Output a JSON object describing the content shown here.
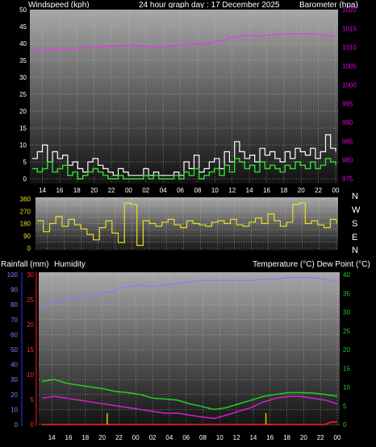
{
  "header": {
    "windspeed_label": "Windspeed (kph)",
    "title": "24 hour graph day : 17 December 2025",
    "barometer_label": "Barometer (hpa)"
  },
  "footer_labels": {
    "rainfall_label": "Rainfall (mm)",
    "humidity_label": "Humidity",
    "temp_dew_label": "Temperature (°C) Dew Point (°C)"
  },
  "time_ticks": [
    "14",
    "16",
    "18",
    "20",
    "22",
    "00",
    "02",
    "04",
    "06",
    "08",
    "10",
    "12",
    "14",
    "16",
    "18",
    "20",
    "22",
    "00"
  ],
  "wind_dirs": [
    "N",
    "W",
    "S",
    "E",
    "N"
  ],
  "colors": {
    "barometer": "#e040e0",
    "wind_avg": "#33dd33",
    "wind_gust": "#ffffff",
    "wind_dir": "#e8e020",
    "humidity": "#8080ff",
    "temperature": "#20d020",
    "dewpoint": "#d020d0",
    "rainfall": "#ff2020",
    "rain_marker": "#e8c000"
  },
  "chart_data": [
    {
      "type": "line",
      "title": "24 hour graph day : 17 December 2025",
      "x_labels": [
        "14",
        "16",
        "18",
        "20",
        "22",
        "00",
        "02",
        "04",
        "06",
        "08",
        "10",
        "12",
        "14",
        "16",
        "18",
        "20",
        "22",
        "00"
      ],
      "ylabel_left": "Windspeed (kph)",
      "ylim_left": [
        0,
        50
      ],
      "yticks_left": [
        "0",
        "5",
        "10",
        "15",
        "20",
        "25",
        "30",
        "35",
        "40",
        "45",
        "50"
      ],
      "ylabel_right": "Barometer (hpa)",
      "ylim_right": [
        975,
        1020
      ],
      "yticks_right": [
        "975",
        "980",
        "985",
        "990",
        "995",
        "1000",
        "1005",
        "1010",
        "1015",
        "1020"
      ],
      "series": [
        {
          "name": "Barometer (hpa)",
          "axis": "right",
          "x": [
            0,
            2,
            4,
            6,
            8,
            10,
            11,
            12,
            14,
            16,
            17,
            18,
            19,
            20,
            22,
            24
          ],
          "values": [
            1009.3,
            1009.4,
            1009.8,
            1010.3,
            1010.5,
            1010.0,
            1010.4,
            1010.8,
            1011.0,
            1012.7,
            1013.2,
            1013.0,
            1013.3,
            1013.6,
            1013.6,
            1012.9
          ]
        },
        {
          "name": "Wind average",
          "axis": "left",
          "x": [
            0,
            0.4,
            0.8,
            1.2,
            1.6,
            2,
            2.4,
            2.8,
            3.2,
            3.6,
            4,
            4.4,
            4.8,
            5.2,
            5.6,
            6,
            6.4,
            6.8,
            7.2,
            7.6,
            8,
            8.4,
            8.8,
            9.2,
            9.6,
            10,
            10.4,
            10.8,
            11.2,
            11.6,
            12,
            12.4,
            12.8,
            13.2,
            13.6,
            14,
            14.4,
            14.8,
            15.2,
            15.6,
            16,
            16.4,
            16.8,
            17.2,
            17.6,
            18,
            18.4,
            18.8,
            19.2,
            19.6,
            20,
            20.4,
            20.8,
            21.2,
            21.6,
            22,
            22.4,
            22.8,
            23.2,
            23.6,
            24
          ],
          "values": [
            3,
            2,
            3,
            5,
            2,
            3,
            4,
            1,
            2,
            0,
            1,
            2,
            3,
            2,
            1,
            0,
            0,
            1,
            0,
            0,
            0,
            0,
            1,
            0,
            1,
            0,
            0,
            0,
            1,
            0,
            2,
            1,
            3,
            0,
            1,
            2,
            3,
            1,
            4,
            2,
            6,
            5,
            3,
            4,
            2,
            5,
            3,
            4,
            3,
            2,
            4,
            3,
            5,
            4,
            3,
            5,
            3,
            4,
            6,
            5,
            4
          ]
        },
        {
          "name": "Wind gust",
          "axis": "left",
          "x": [
            0,
            0.4,
            0.8,
            1.2,
            1.6,
            2,
            2.4,
            2.8,
            3.2,
            3.6,
            4,
            4.4,
            4.8,
            5.2,
            5.6,
            6,
            6.4,
            6.8,
            7.2,
            7.6,
            8,
            8.4,
            8.8,
            9.2,
            9.6,
            10,
            10.4,
            10.8,
            11.2,
            11.6,
            12,
            12.4,
            12.8,
            13.2,
            13.6,
            14,
            14.4,
            14.8,
            15.2,
            15.6,
            16,
            16.4,
            16.8,
            17.2,
            17.6,
            18,
            18.4,
            18.8,
            19.2,
            19.6,
            20,
            20.4,
            20.8,
            21.2,
            21.6,
            22,
            22.4,
            22.8,
            23.2,
            23.6,
            24
          ],
          "values": [
            6,
            8,
            10,
            5,
            8,
            6,
            7,
            4,
            5,
            3,
            2,
            5,
            6,
            4,
            3,
            2,
            1,
            3,
            2,
            1,
            1,
            1,
            3,
            1,
            2,
            1,
            1,
            1,
            2,
            1,
            5,
            3,
            7,
            2,
            3,
            5,
            6,
            3,
            8,
            5,
            11,
            8,
            6,
            7,
            5,
            9,
            7,
            8,
            6,
            5,
            8,
            6,
            9,
            8,
            7,
            9,
            6,
            8,
            13,
            9,
            8
          ]
        }
      ]
    },
    {
      "type": "line",
      "ylabel_left": "",
      "ylim_left": [
        0,
        360
      ],
      "yticks_left": [
        "0",
        "45",
        "90",
        "135",
        "180",
        "225",
        "270",
        "315",
        "360"
      ],
      "yticks_left_printed": [
        "360",
        "270",
        "180",
        "90",
        "0"
      ],
      "compass_right": [
        "N",
        "W",
        "S",
        "E",
        "N"
      ],
      "x_labels": [
        "14",
        "16",
        "18",
        "20",
        "22",
        "00",
        "02",
        "04",
        "06",
        "08",
        "10",
        "12",
        "14",
        "16",
        "18",
        "20",
        "22",
        "00"
      ],
      "series": [
        {
          "name": "Wind direction",
          "x": [
            0,
            0.5,
            1,
            1.5,
            2,
            2.5,
            3,
            3.5,
            4,
            4.5,
            5,
            5.5,
            6,
            6.5,
            7,
            7.5,
            8,
            8.5,
            9,
            9.5,
            10,
            10.5,
            11,
            11.5,
            12,
            12.5,
            13,
            13.5,
            14,
            14.5,
            15,
            15.5,
            16,
            16.5,
            17,
            17.5,
            18,
            18.5,
            19,
            19.5,
            20,
            20.5,
            21,
            21.5,
            22,
            22.5,
            23,
            23.5,
            24
          ],
          "values": [
            200,
            120,
            180,
            230,
            160,
            210,
            170,
            140,
            100,
            60,
            150,
            200,
            110,
            40,
            330,
            320,
            20,
            200,
            180,
            160,
            190,
            210,
            170,
            150,
            200,
            180,
            170,
            160,
            190,
            200,
            180,
            210,
            170,
            160,
            190,
            220,
            180,
            250,
            200,
            160,
            190,
            320,
            330,
            180,
            200,
            170,
            150,
            210,
            180
          ]
        }
      ]
    },
    {
      "type": "line",
      "x_labels": [
        "14",
        "16",
        "18",
        "20",
        "22",
        "00",
        "02",
        "04",
        "06",
        "08",
        "10",
        "12",
        "14",
        "16",
        "18",
        "20",
        "22",
        "00"
      ],
      "ylabel_left": "Humidity",
      "ylim_humidity": [
        0,
        100
      ],
      "yticks_humidity": [
        "0",
        "10",
        "20",
        "30",
        "40",
        "50",
        "60",
        "70",
        "80",
        "90",
        "100"
      ],
      "ylabel_rain": "Rainfall (mm)",
      "ylim_rain": [
        0,
        30
      ],
      "yticks_rain": [
        "0",
        "5",
        "10",
        "15",
        "20",
        "25",
        "30"
      ],
      "ylabel_right": "Temperature (°C) Dew Point (°C)",
      "ylim_right": [
        0,
        40
      ],
      "yticks_right": [
        "0",
        "5",
        "10",
        "15",
        "20",
        "25",
        "30",
        "35",
        "40"
      ],
      "series": [
        {
          "name": "Humidity",
          "axis": "humidity",
          "x": [
            0,
            1,
            2,
            3,
            4,
            5,
            6,
            7,
            8,
            9,
            10,
            11,
            12,
            13,
            14,
            15,
            16,
            17,
            18,
            19,
            20,
            21,
            22,
            23,
            24
          ],
          "values": [
            78,
            82,
            84,
            85,
            86,
            88,
            90,
            92,
            93,
            92,
            93,
            94,
            95,
            96,
            96,
            96,
            96,
            96,
            97,
            97,
            98,
            98,
            98,
            97,
            95
          ]
        },
        {
          "name": "Temperature (°C)",
          "axis": "temp",
          "x": [
            0,
            1,
            2,
            3,
            4,
            5,
            6,
            7,
            8,
            9,
            10,
            11,
            12,
            13,
            14,
            15,
            16,
            17,
            18,
            19,
            20,
            21,
            22,
            23,
            24
          ],
          "values": [
            11.5,
            12,
            11,
            10.5,
            10,
            9.5,
            8.8,
            8.5,
            8,
            7,
            6.8,
            6.5,
            5.5,
            4.8,
            4,
            4.5,
            5.5,
            6.5,
            7.5,
            8,
            8.5,
            8.5,
            8.4,
            8,
            7.5
          ]
        },
        {
          "name": "Dew Point (°C)",
          "axis": "temp",
          "x": [
            0,
            1,
            2,
            3,
            4,
            5,
            6,
            7,
            8,
            9,
            10,
            11,
            12,
            13,
            14,
            15,
            16,
            17,
            18,
            19,
            20,
            21,
            22,
            23,
            24
          ],
          "values": [
            7,
            7.5,
            7,
            6.5,
            6,
            5.5,
            5,
            4.5,
            4,
            3.5,
            3,
            3,
            2.5,
            2,
            1.6,
            2.5,
            3.5,
            4.5,
            6,
            7,
            7.5,
            7.5,
            7,
            6.5,
            5.5
          ]
        },
        {
          "name": "Rainfall (mm)",
          "axis": "rain",
          "x": [
            0,
            23,
            23.5,
            24
          ],
          "values": [
            0,
            0,
            0.5,
            0.5
          ]
        }
      ],
      "rain_markers_x": [
        5.3,
        18.2
      ]
    }
  ]
}
